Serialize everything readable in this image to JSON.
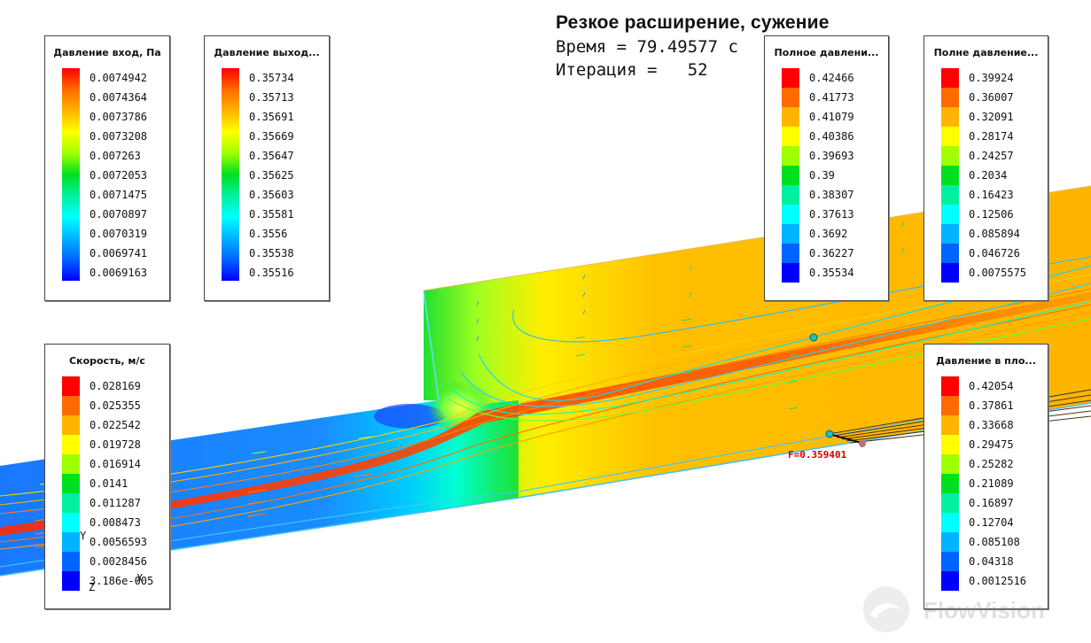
{
  "header": {
    "title": "Резкое расширение, сужение",
    "time_line": "Время = 79.49577 с",
    "iteration_line": "Итерация =   52"
  },
  "legends": {
    "inlet_pressure": {
      "title": "Давление вход, Па",
      "style": "gradient",
      "values": [
        "0.0074942",
        "0.0074364",
        "0.0073786",
        "0.0073208",
        "0.007263",
        "0.0072053",
        "0.0071475",
        "0.0070897",
        "0.0070319",
        "0.0069741",
        "0.0069163"
      ]
    },
    "outlet_pressure": {
      "title": "Давление выход...",
      "style": "gradient",
      "values": [
        "0.35734",
        "0.35713",
        "0.35691",
        "0.35669",
        "0.35647",
        "0.35625",
        "0.35603",
        "0.35581",
        "0.3556",
        "0.35538",
        "0.35516"
      ]
    },
    "total_pressure_1": {
      "title": "Полное давлени...",
      "style": "discrete",
      "values": [
        "0.42466",
        "0.41773",
        "0.41079",
        "0.40386",
        "0.39693",
        "0.39",
        "0.38307",
        "0.37613",
        "0.3692",
        "0.36227",
        "0.35534"
      ]
    },
    "total_pressure_2": {
      "title": "Полне давление...",
      "style": "discrete",
      "values": [
        "0.39924",
        "0.36007",
        "0.32091",
        "0.28174",
        "0.24257",
        "0.2034",
        "0.16423",
        "0.12506",
        "0.085894",
        "0.046726",
        "0.0075575"
      ]
    },
    "velocity": {
      "title": "Скорость, м/с",
      "style": "discrete",
      "values": [
        "0.028169",
        "0.025355",
        "0.022542",
        "0.019728",
        "0.016914",
        "0.0141",
        "0.011287",
        "0.008473",
        "0.0056593",
        "0.0028456",
        "3.186e-005"
      ]
    },
    "plane_pressure": {
      "title": "Давление в пло...",
      "style": "discrete",
      "values": [
        "0.42054",
        "0.37861",
        "0.33668",
        "0.29475",
        "0.25282",
        "0.21089",
        "0.16897",
        "0.12704",
        "0.085108",
        "0.04318",
        "0.0012516"
      ]
    }
  },
  "palette": [
    "#ff0000",
    "#ff6a00",
    "#ffb400",
    "#ffff00",
    "#a0ff00",
    "#00e020",
    "#00f0a0",
    "#00ffff",
    "#00b4ff",
    "#0064ff",
    "#0000ff"
  ],
  "force_label": "F=0.359401",
  "axes": {
    "y": "Y",
    "x": "X",
    "z": "Z"
  },
  "watermark": "FlowVision"
}
